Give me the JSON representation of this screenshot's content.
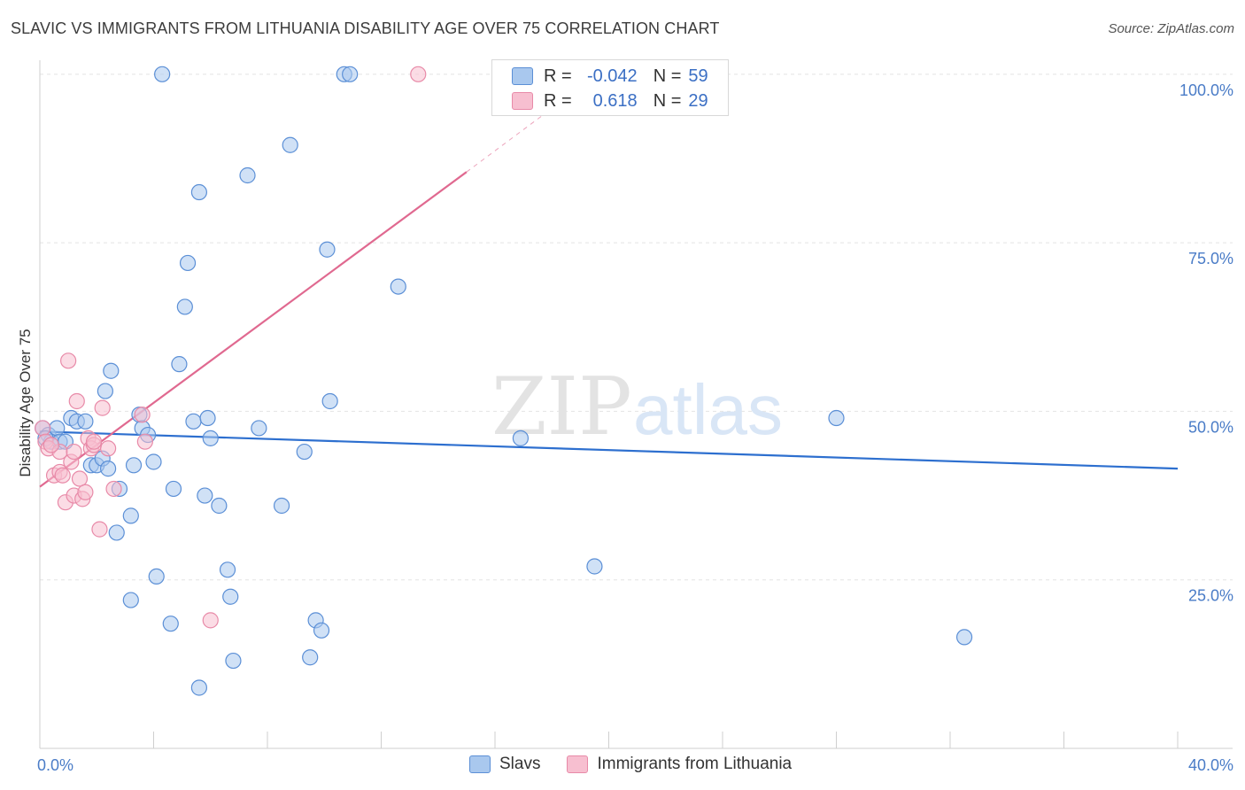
{
  "title": "SLAVIC VS IMMIGRANTS FROM LITHUANIA DISABILITY AGE OVER 75 CORRELATION CHART",
  "source": "Source: ZipAtlas.com",
  "watermark": {
    "zip": "ZIP",
    "atlas": "atlas"
  },
  "legend": {
    "series1": {
      "r_label": "R =",
      "r_value": "-0.042",
      "n_label": "N =",
      "n_value": "59"
    },
    "series2": {
      "r_label": "R =",
      "r_value": "0.618",
      "n_label": "N =",
      "n_value": "29"
    }
  },
  "colors": {
    "slavs_fill": "#a9c8ee",
    "slavs_stroke": "#5b8fd6",
    "slavs_line": "#2d6fcf",
    "lith_fill": "#f7bfd0",
    "lith_stroke": "#e88aa8",
    "lith_line": "#e06990"
  },
  "chart_data": {
    "type": "scatter",
    "title": "SLAVIC VS IMMIGRANTS FROM LITHUANIA DISABILITY AGE OVER 75 CORRELATION CHART",
    "xlabel": "",
    "ylabel": "Disability Age Over 75",
    "xlim": [
      0,
      40
    ],
    "ylim": [
      0,
      105
    ],
    "x_tick_labels": [
      "0.0%",
      "40.0%"
    ],
    "y_tick_labels": [
      "100.0%",
      "75.0%",
      "50.0%",
      "25.0%"
    ],
    "y_ticks": [
      100,
      75,
      50,
      25
    ],
    "legend_position": "bottom-center",
    "series": [
      {
        "name": "Slavs",
        "points": [
          [
            0.1,
            47.5
          ],
          [
            0.3,
            46.5
          ],
          [
            0.4,
            45.5
          ],
          [
            0.6,
            47.5
          ],
          [
            0.7,
            45.5
          ],
          [
            0.9,
            45.5
          ],
          [
            1.1,
            49.0
          ],
          [
            1.3,
            48.5
          ],
          [
            1.6,
            48.5
          ],
          [
            1.8,
            42.0
          ],
          [
            2.0,
            42.0
          ],
          [
            2.2,
            43.0
          ],
          [
            2.3,
            53.0
          ],
          [
            2.4,
            41.5
          ],
          [
            2.5,
            56.0
          ],
          [
            2.7,
            32.0
          ],
          [
            2.8,
            38.5
          ],
          [
            3.2,
            22.0
          ],
          [
            3.2,
            34.5
          ],
          [
            3.3,
            42.0
          ],
          [
            3.5,
            49.5
          ],
          [
            3.6,
            47.5
          ],
          [
            3.8,
            46.5
          ],
          [
            4.0,
            42.5
          ],
          [
            4.1,
            25.5
          ],
          [
            4.3,
            100.0
          ],
          [
            4.6,
            18.5
          ],
          [
            4.7,
            38.5
          ],
          [
            4.9,
            57.0
          ],
          [
            5.1,
            65.5
          ],
          [
            5.2,
            72.0
          ],
          [
            5.4,
            48.5
          ],
          [
            5.6,
            9.0
          ],
          [
            5.6,
            82.5
          ],
          [
            5.8,
            37.5
          ],
          [
            5.9,
            49.0
          ],
          [
            6.0,
            46.0
          ],
          [
            6.3,
            36.0
          ],
          [
            6.6,
            26.5
          ],
          [
            6.7,
            22.5
          ],
          [
            6.8,
            13.0
          ],
          [
            7.3,
            85.0
          ],
          [
            7.7,
            47.5
          ],
          [
            8.5,
            36.0
          ],
          [
            8.8,
            89.5
          ],
          [
            9.3,
            44.0
          ],
          [
            9.5,
            13.5
          ],
          [
            9.7,
            19.0
          ],
          [
            9.9,
            17.5
          ],
          [
            10.1,
            74.0
          ],
          [
            10.2,
            51.5
          ],
          [
            10.7,
            100.0
          ],
          [
            10.9,
            100.0
          ],
          [
            12.6,
            68.5
          ],
          [
            16.9,
            46.0
          ],
          [
            19.5,
            27.0
          ],
          [
            28.0,
            49.0
          ],
          [
            32.5,
            16.5
          ],
          [
            0.2,
            46.0
          ]
        ],
        "trend": {
          "x": [
            0,
            40
          ],
          "y": [
            47.0,
            41.5
          ]
        }
      },
      {
        "name": "Immigrants from Lithuania",
        "points": [
          [
            0.1,
            47.5
          ],
          [
            0.2,
            45.5
          ],
          [
            0.3,
            44.5
          ],
          [
            0.5,
            40.5
          ],
          [
            0.7,
            41.0
          ],
          [
            0.7,
            44.0
          ],
          [
            0.9,
            36.5
          ],
          [
            1.0,
            57.5
          ],
          [
            1.1,
            42.5
          ],
          [
            1.2,
            37.5
          ],
          [
            1.3,
            51.5
          ],
          [
            1.4,
            40.0
          ],
          [
            1.5,
            37.0
          ],
          [
            1.6,
            38.0
          ],
          [
            1.7,
            46.0
          ],
          [
            1.8,
            44.5
          ],
          [
            1.9,
            45.0
          ],
          [
            2.1,
            32.5
          ],
          [
            2.2,
            50.5
          ],
          [
            2.4,
            44.5
          ],
          [
            2.6,
            38.5
          ],
          [
            3.6,
            49.5
          ],
          [
            3.7,
            45.5
          ],
          [
            6.0,
            19.0
          ],
          [
            13.3,
            100.0
          ],
          [
            0.4,
            45.0
          ],
          [
            0.8,
            40.5
          ],
          [
            1.2,
            44.0
          ],
          [
            1.9,
            45.5
          ]
        ],
        "trend": {
          "x": [
            0,
            15.0
          ],
          "y": [
            38.8,
            85.5
          ]
        },
        "trend_dashed_extension": {
          "x": [
            15.0,
            18.5
          ],
          "y": [
            85.5,
            96.5
          ]
        }
      }
    ]
  }
}
